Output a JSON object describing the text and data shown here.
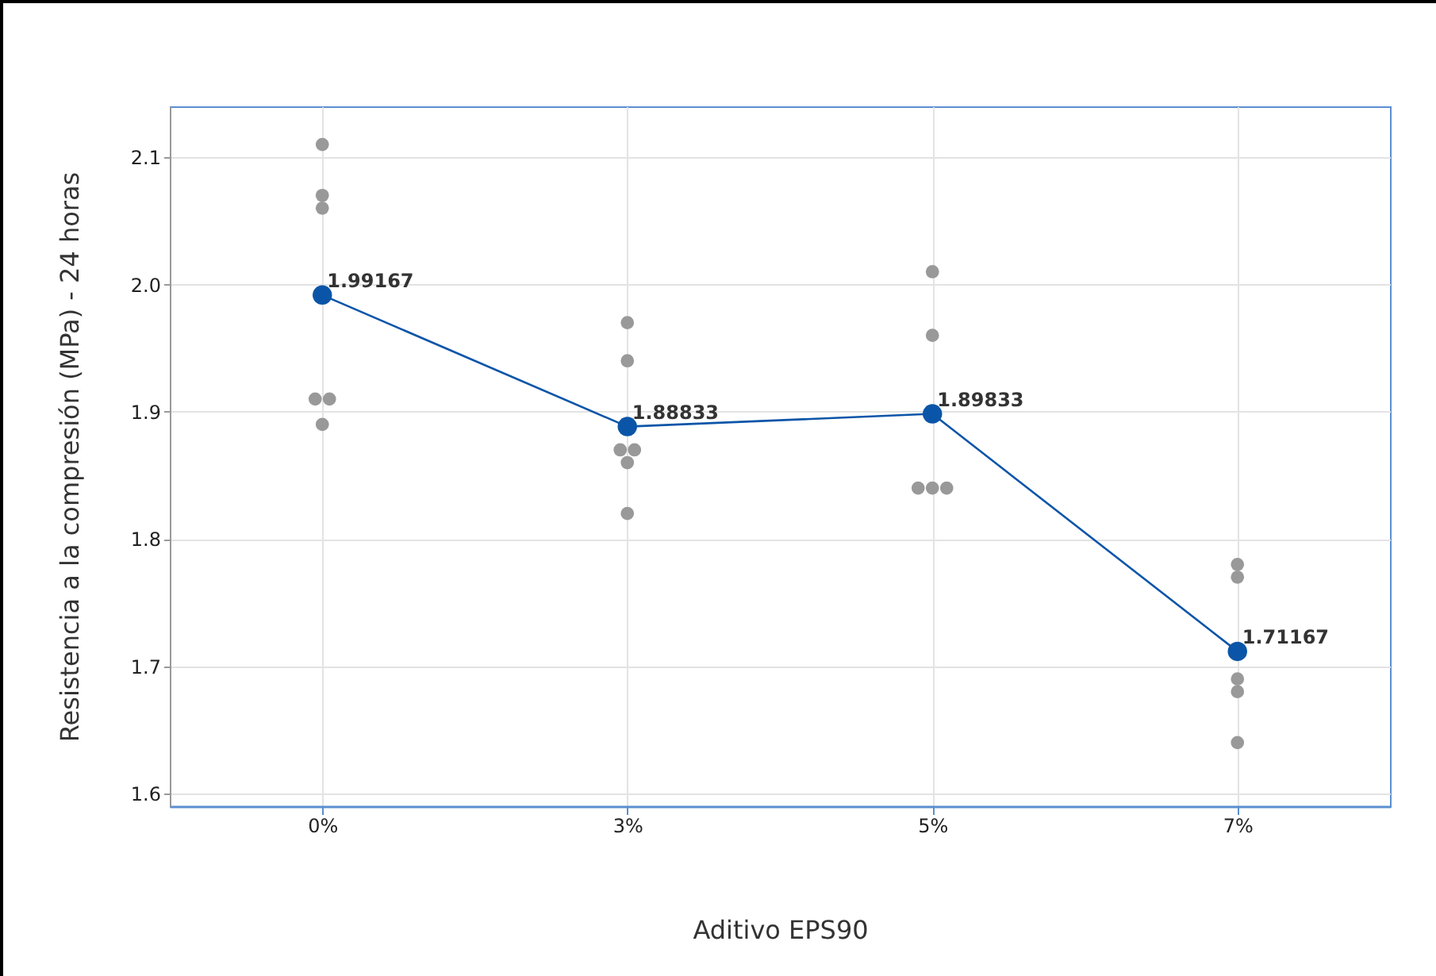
{
  "chart_data": {
    "type": "scatter",
    "xlabel": "Aditivo EPS90",
    "ylabel": "Resistencia a la compresión (MPa) - 24 horas",
    "categories": [
      "0%",
      "3%",
      "5%",
      "7%"
    ],
    "series": [
      {
        "color": "#999999",
        "x": [
          "0%",
          "0%",
          "0%",
          "0%",
          "0%",
          "0%",
          "3%",
          "3%",
          "3%",
          "3%",
          "3%",
          "3%",
          "5%",
          "5%",
          "5%",
          "5%",
          "5%",
          "5%",
          "7%",
          "7%",
          "7%",
          "7%",
          "7%",
          "7%"
        ],
        "values": [
          2.11,
          2.07,
          2.06,
          1.91,
          1.91,
          1.89,
          1.97,
          1.94,
          1.87,
          1.87,
          1.86,
          1.82,
          2.01,
          1.96,
          null,
          1.84,
          1.84,
          1.84,
          1.78,
          1.77,
          null,
          1.69,
          1.68,
          1.64
        ]
      },
      {
        "type": "line",
        "color": "#0b55a8",
        "values": [
          1.99167,
          1.88833,
          1.89833,
          1.71167
        ],
        "value_labels": [
          "1.99167",
          "1.88833",
          "1.89833",
          "1.71167"
        ],
        "marker": "circle",
        "line_style": "solid"
      }
    ],
    "ylim": [
      1.59,
      2.14
    ],
    "yticks": [
      1.6,
      1.7,
      1.8,
      1.9,
      {
        "value": 2,
        "label": "2.0"
      },
      2.1
    ],
    "grid": true,
    "legend": false
  }
}
